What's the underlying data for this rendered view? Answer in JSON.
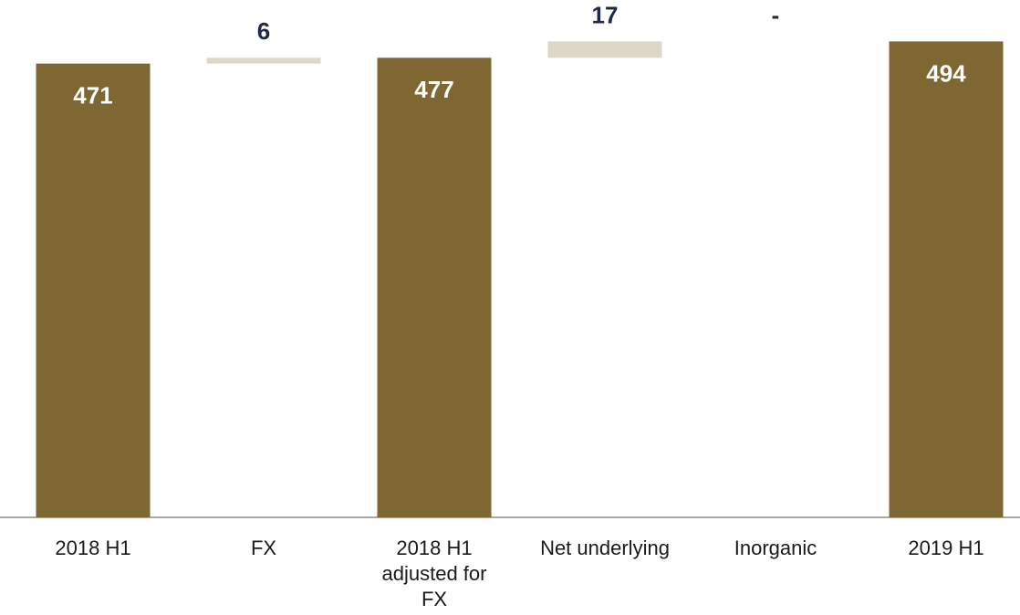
{
  "chart_data": {
    "type": "waterfall",
    "categories": [
      "2018 H1",
      "FX",
      "2018 H1 adjusted for FX",
      "Net underlying",
      "Inorganic",
      "2019 H1"
    ],
    "values": [
      471,
      6,
      477,
      17,
      0,
      494
    ],
    "value_labels": [
      "471",
      "6",
      "477",
      "17",
      "-",
      "494"
    ],
    "totals": [
      true,
      false,
      true,
      false,
      false,
      true
    ],
    "total_color": "#7f6734",
    "change_color": "#ddd7c7",
    "ylim": [
      0,
      537
    ]
  }
}
